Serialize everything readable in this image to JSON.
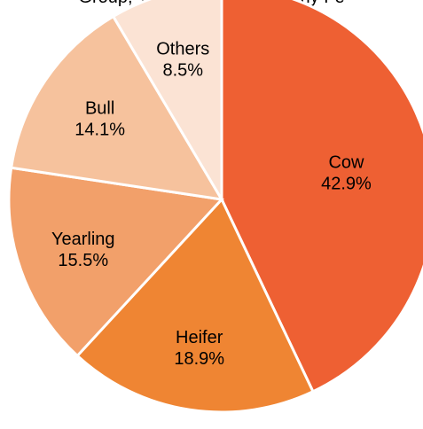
{
  "header": {
    "cut_text": "Group, % approved as of early Fe"
  },
  "chart_data": {
    "type": "pie",
    "slices": [
      {
        "name": "Cow",
        "label": "Cow",
        "value": 42.9,
        "value_label": "42.9%",
        "color": "#EE6033"
      },
      {
        "name": "Heifer",
        "label": "Heifer",
        "value": 18.9,
        "value_label": "18.9%",
        "color": "#EF8533"
      },
      {
        "name": "Yearling",
        "label": "Yearling",
        "value": 15.5,
        "value_label": "15.5%",
        "color": "#F2A06A"
      },
      {
        "name": "Bull",
        "label": "Bull",
        "value": 14.1,
        "value_label": "14.1%",
        "color": "#F6C29D"
      },
      {
        "name": "Others",
        "label": "Others",
        "value": 8.5,
        "value_label": "8.5%",
        "color": "#FBE3D4"
      }
    ],
    "start": "12 o'clock",
    "direction": "clockwise",
    "legend": "none",
    "slice_border_color": "#FFFFFF"
  }
}
